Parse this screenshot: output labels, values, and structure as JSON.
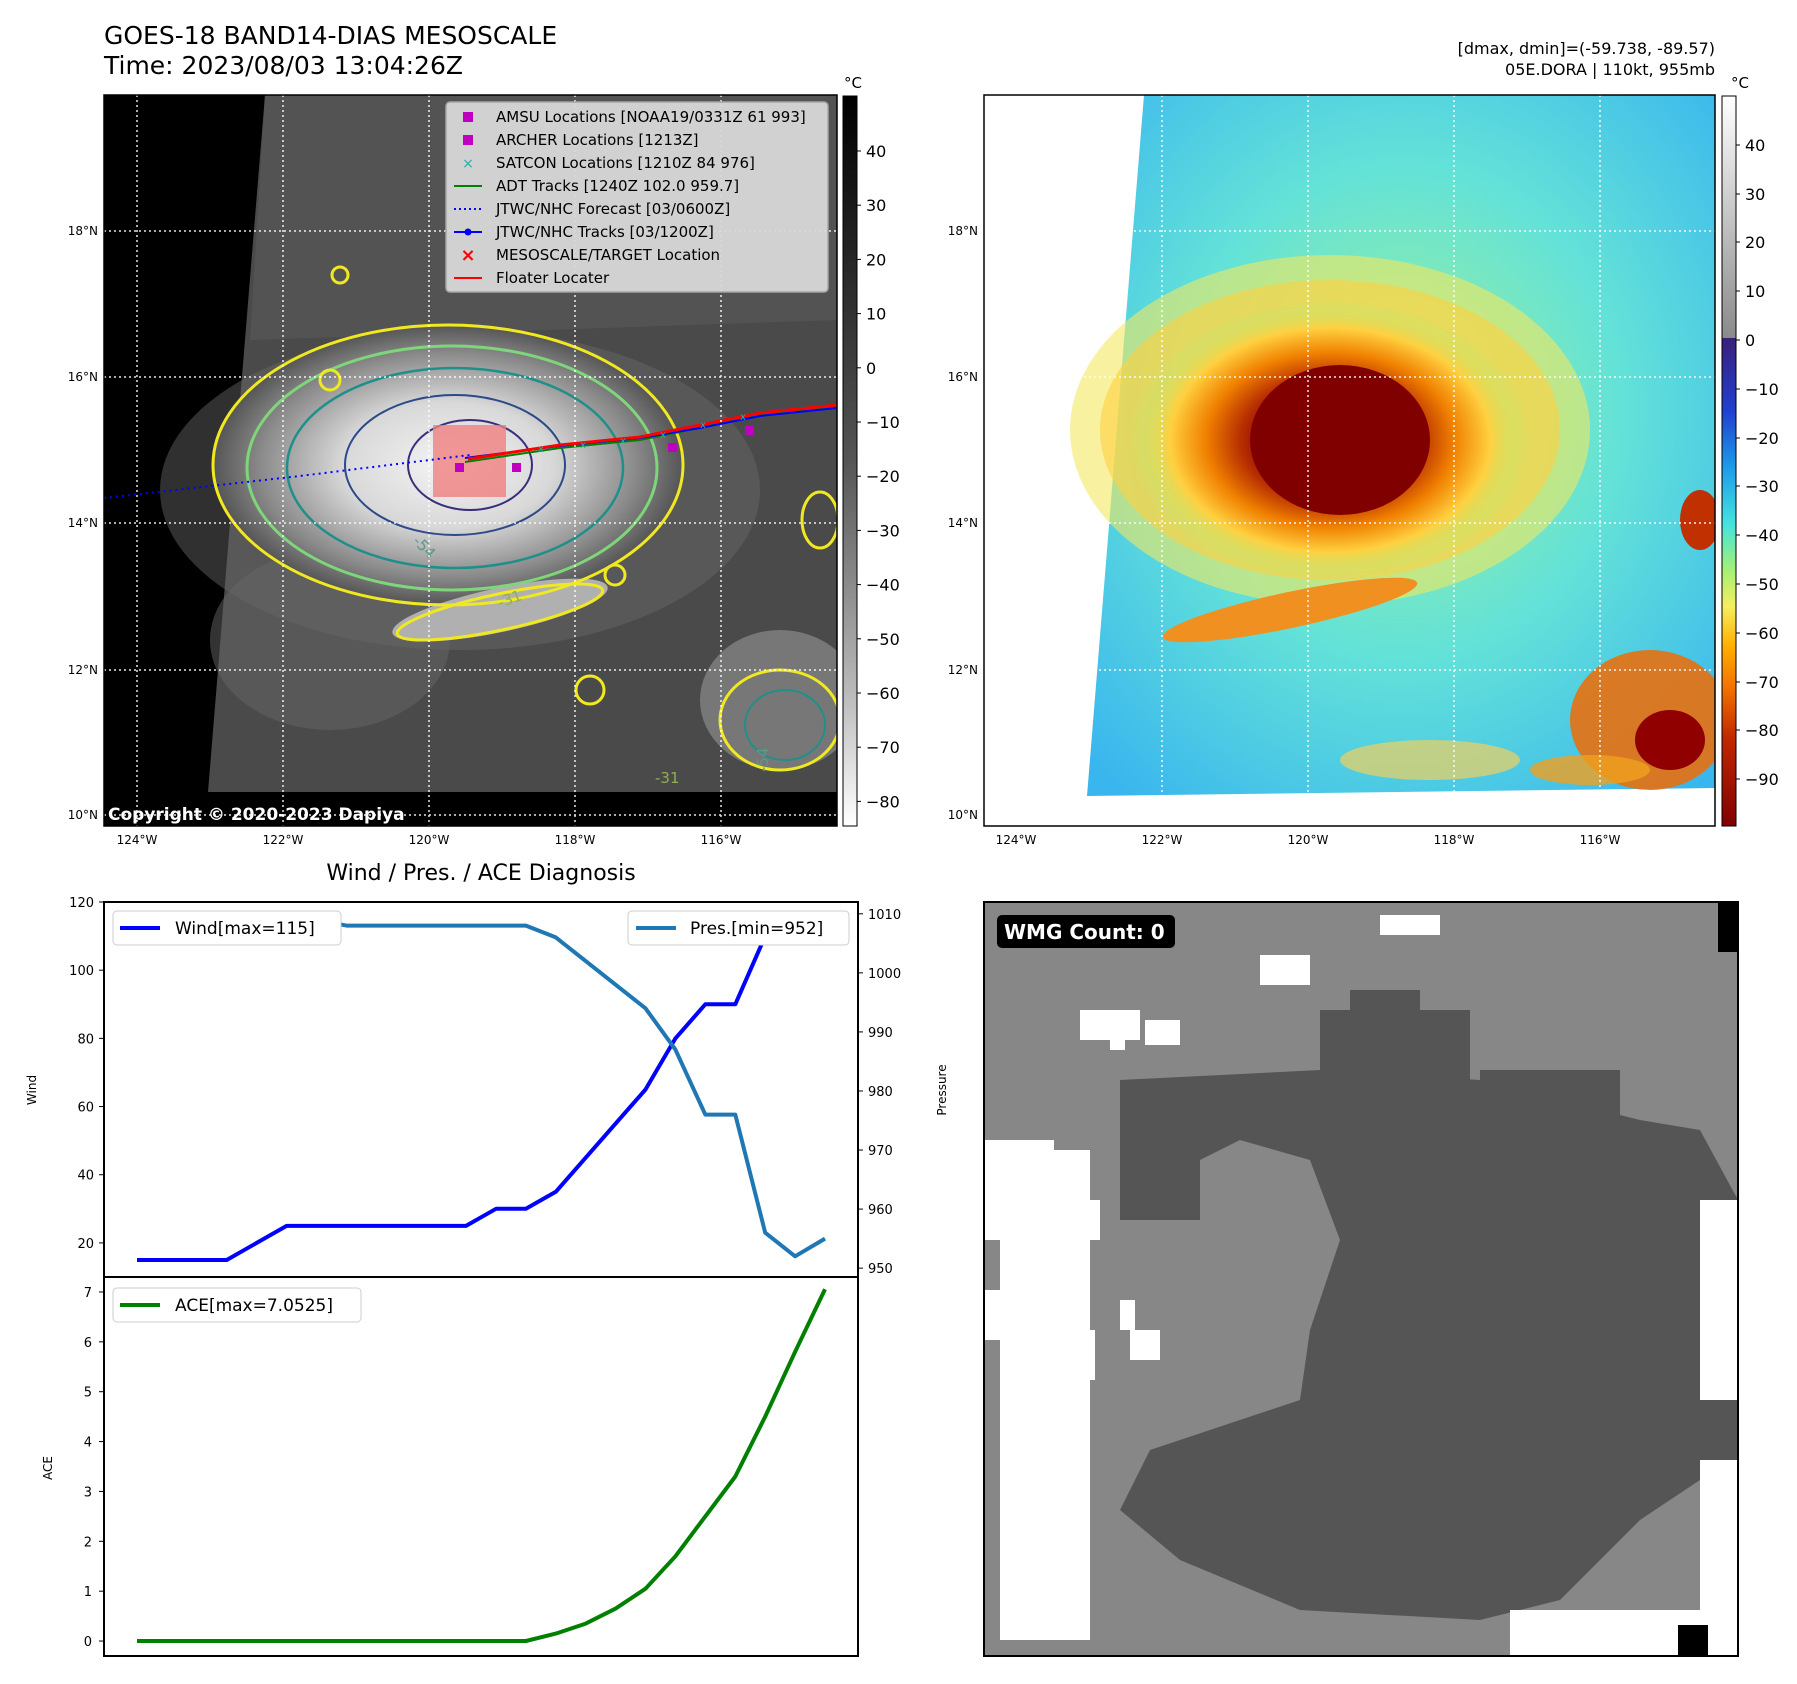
{
  "header": {
    "title_line1": "GOES-18 BAND14-DIAS MESOSCALE",
    "title_line2": "Time: 2023/08/03 13:04:26Z",
    "right_line1": "[dmax, dmin]=(-59.738, -89.57)",
    "right_line2": "05E.DORA | 110kt, 955mb"
  },
  "copyright": "Copyright © 2020-2023 Dapiya",
  "colorbar_unit": "°C",
  "colorbar_left_ticks": [
    "40",
    "30",
    "20",
    "10",
    "0",
    "−10",
    "−20",
    "−30",
    "−40",
    "−50",
    "−60",
    "−70",
    "−80"
  ],
  "colorbar_right_ticks": [
    "40",
    "30",
    "20",
    "10",
    "0",
    "−10",
    "−20",
    "−30",
    "−40",
    "−50",
    "−60",
    "−70",
    "−80",
    "−90"
  ],
  "map_lat_labels": [
    "18°N",
    "16°N",
    "14°N",
    "12°N",
    "10°N"
  ],
  "map_lon_labels": [
    "124°W",
    "122°W",
    "120°W",
    "118°W",
    "116°W"
  ],
  "map_legend": [
    {
      "label": "AMSU Locations [NOAA19/0331Z 61 993]",
      "marker": "square",
      "color": "#c000c0"
    },
    {
      "label": "ARCHER Locations [1213Z]",
      "marker": "square",
      "color": "#c000c0"
    },
    {
      "label": "SATCON Locations [1210Z 84 976]",
      "marker": "x",
      "color": "#20b2aa"
    },
    {
      "label": "ADT Tracks [1240Z 102.0 959.7]",
      "marker": "line",
      "color": "#008000"
    },
    {
      "label": "JTWC/NHC Forecast [03/0600Z]",
      "marker": "dotted",
      "color": "#0000ff"
    },
    {
      "label": "JTWC/NHC Tracks [03/1200Z]",
      "marker": "line-dot",
      "color": "#0000ff"
    },
    {
      "label": "MESOSCALE/TARGET Location",
      "marker": "redx",
      "color": "#ff0000"
    },
    {
      "label": "Floater Locater",
      "marker": "line",
      "color": "#ff0000"
    }
  ],
  "contour_labels": [
    "-54",
    "-31",
    "-54",
    "-31"
  ],
  "panel3_title": "Wind / Pres. / ACE Diagnosis",
  "wmg_label": "WMG Count: 0",
  "chart_data": [
    {
      "type": "line",
      "title": "Wind / Pres. / ACE Diagnosis",
      "ylabel": "Wind",
      "y2label": "Pressure",
      "ylim": [
        10,
        120
      ],
      "y2lim": [
        948.5,
        1012
      ],
      "yticks": [
        20,
        40,
        60,
        80,
        100,
        120
      ],
      "y2ticks": [
        950,
        960,
        970,
        980,
        990,
        1000,
        1010
      ],
      "x": [
        0,
        1,
        2,
        3,
        4,
        5,
        6,
        7,
        8,
        9,
        10,
        11,
        12,
        13,
        14,
        15,
        16,
        17,
        18,
        19,
        20,
        21,
        22,
        23
      ],
      "series": [
        {
          "name": "Wind[max=115]",
          "axis": "left",
          "color": "#0000ff",
          "values": [
            15,
            15,
            15,
            15,
            20,
            25,
            25,
            25,
            25,
            25,
            25,
            25,
            30,
            30,
            35,
            45,
            55,
            65,
            80,
            90,
            90,
            110,
            115,
            110
          ]
        },
        {
          "name": "Pres.[min=952]",
          "axis": "right",
          "color": "#1f77b4",
          "values": [
            1010,
            1010,
            1010,
            1010,
            1009,
            1009,
            1009,
            1008,
            1008,
            1008,
            1008,
            1008,
            1008,
            1008,
            1006,
            1002,
            998,
            994,
            987,
            976,
            976,
            956,
            952,
            955
          ]
        }
      ]
    },
    {
      "type": "line",
      "ylabel": "ACE",
      "ylim": [
        -0.3,
        7.3
      ],
      "yticks": [
        0,
        1,
        2,
        3,
        4,
        5,
        6,
        7
      ],
      "x": [
        0,
        1,
        2,
        3,
        4,
        5,
        6,
        7,
        8,
        9,
        10,
        11,
        12,
        13,
        14,
        15,
        16,
        17,
        18,
        19,
        20,
        21,
        22,
        23
      ],
      "series": [
        {
          "name": "ACE[max=7.0525]",
          "color": "#008000",
          "values": [
            0,
            0,
            0,
            0,
            0,
            0,
            0,
            0,
            0,
            0,
            0,
            0,
            0,
            0,
            0.15,
            0.35,
            0.65,
            1.05,
            1.7,
            2.5,
            3.3,
            4.5,
            5.8,
            7.0525
          ]
        }
      ]
    }
  ]
}
